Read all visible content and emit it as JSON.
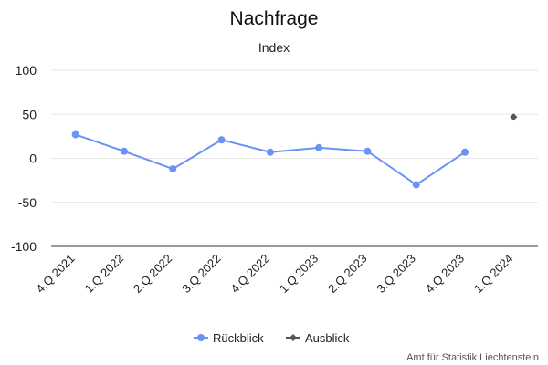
{
  "chart_data": {
    "type": "line",
    "title": "Nachfrage",
    "subtitle": "Index",
    "categories": [
      "4.Q 2021",
      "1.Q 2022",
      "2.Q 2022",
      "3.Q 2022",
      "4.Q 2022",
      "1.Q 2023",
      "2.Q 2023",
      "3.Q 2023",
      "4.Q 2023",
      "1.Q 2024"
    ],
    "ylim": [
      -100,
      100
    ],
    "yticks": [
      100,
      50,
      0,
      -50,
      -100
    ],
    "grid": true,
    "legend_position": "bottom-center",
    "series": [
      {
        "name": "Rückblick",
        "color": "#6b93f5",
        "marker": "circle",
        "values": [
          27,
          8,
          -12,
          21,
          7,
          12,
          8,
          -30,
          7,
          null
        ]
      },
      {
        "name": "Ausblick",
        "color": "#555555",
        "marker": "diamond",
        "values": [
          null,
          null,
          null,
          null,
          null,
          null,
          null,
          null,
          null,
          47
        ]
      }
    ]
  },
  "credit": "Amt für Statistik Liechtenstein"
}
